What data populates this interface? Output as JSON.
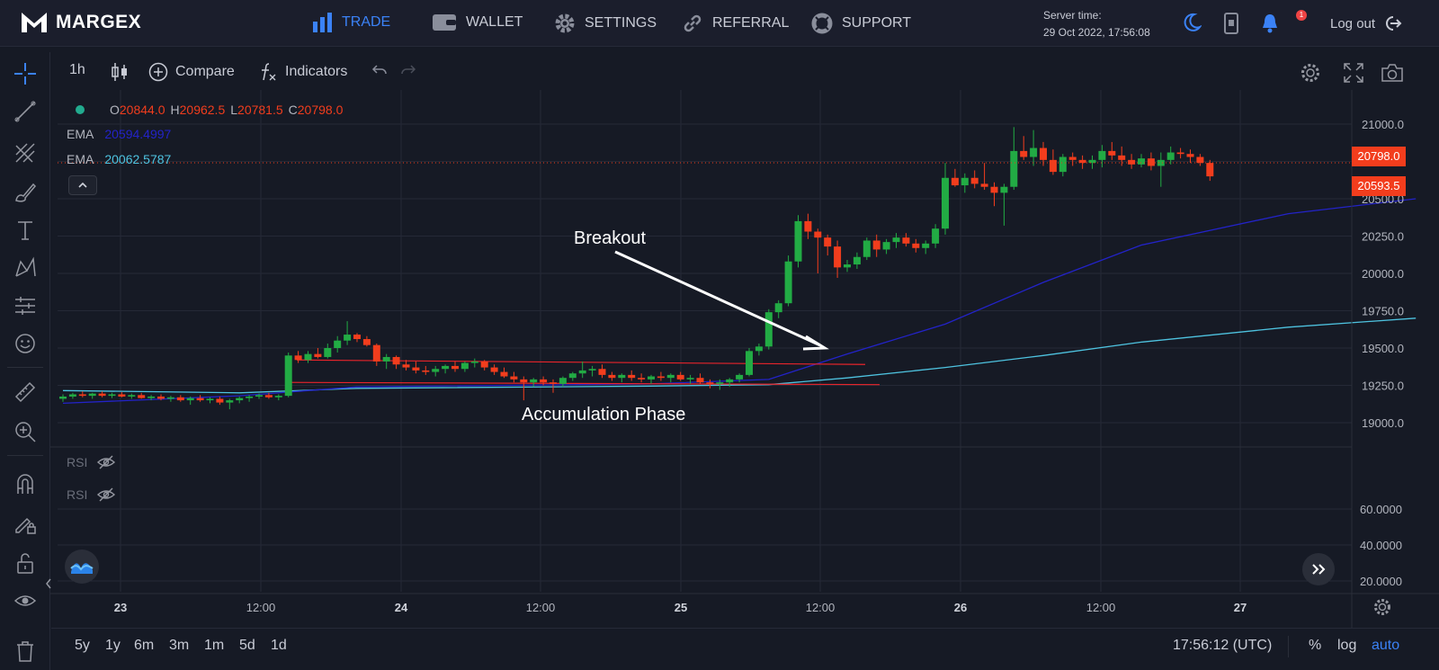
{
  "nav": {
    "brand": "MARGEX",
    "items": [
      {
        "label": "TRADE",
        "icon": "bar-chart-icon",
        "active": true
      },
      {
        "label": "WALLET",
        "icon": "wallet-icon"
      },
      {
        "label": "SETTINGS",
        "icon": "gear-icon"
      },
      {
        "label": "REFERRAL",
        "icon": "link-icon"
      },
      {
        "label": "SUPPORT",
        "icon": "lifebuoy-icon"
      }
    ],
    "server_time_label": "Server time:",
    "server_time": "29 Oct 2022, 17:56:08",
    "notification_count": "1",
    "logout": "Log out"
  },
  "toolbar": {
    "interval": "1h",
    "compare": "Compare",
    "indicators": "Indicators"
  },
  "legend": {
    "o_label": "O",
    "o": "20844.0",
    "h_label": "H",
    "h": "20962.5",
    "l_label": "L",
    "l": "20781.5",
    "c_label": "C",
    "c": "20798.0",
    "ema1_label": "EMA",
    "ema1": "20594.4997",
    "ema2_label": "EMA",
    "ema2": "20062.5787",
    "rsi1": "RSI",
    "rsi2": "RSI"
  },
  "annotations": {
    "breakout": "Breakout",
    "accumulation": "Accumulation Phase"
  },
  "price_axis": {
    "labels": [
      "21000.0",
      "20500.0",
      "20250.0",
      "20000.0",
      "19750.0",
      "19500.0",
      "19250.0",
      "19000.0"
    ],
    "last_price": "20798.0",
    "ema_price": "20593.5",
    "rsi_labels": [
      "60.0000",
      "40.0000",
      "20.0000"
    ]
  },
  "time_axis": [
    "23",
    "12:00",
    "24",
    "12:00",
    "25",
    "12:00",
    "26",
    "12:00",
    "27"
  ],
  "bottom": {
    "ranges": [
      "5y",
      "1y",
      "6m",
      "3m",
      "1m",
      "5d",
      "1d"
    ],
    "clock": "17:56:12 (UTC)",
    "percent": "%",
    "log": "log",
    "auto": "auto"
  },
  "colors": {
    "up": "#22ab44",
    "down": "#f23d1d",
    "ema_fast": "#2323c8",
    "ema_slow": "#4ec3e0",
    "accent": "#3b82f6"
  },
  "chart_data": {
    "type": "candlestick",
    "symbol_interval": "1h",
    "ylim": [
      18850,
      21150
    ],
    "x": [
      "23",
      "12:00",
      "24",
      "12:00",
      "25",
      "12:00",
      "26",
      "12:00",
      "27"
    ],
    "candles": [
      [
        19160,
        19190,
        19140,
        19175
      ],
      [
        19175,
        19200,
        19160,
        19190
      ],
      [
        19190,
        19210,
        19170,
        19180
      ],
      [
        19180,
        19200,
        19160,
        19195
      ],
      [
        19195,
        19210,
        19170,
        19180
      ],
      [
        19180,
        19200,
        19165,
        19190
      ],
      [
        19190,
        19205,
        19170,
        19175
      ],
      [
        19175,
        19195,
        19160,
        19185
      ],
      [
        19185,
        19200,
        19160,
        19165
      ],
      [
        19165,
        19185,
        19150,
        19175
      ],
      [
        19175,
        19190,
        19150,
        19160
      ],
      [
        19160,
        19180,
        19140,
        19170
      ],
      [
        19170,
        19185,
        19140,
        19150
      ],
      [
        19150,
        19175,
        19120,
        19165
      ],
      [
        19165,
        19185,
        19140,
        19150
      ],
      [
        19150,
        19170,
        19130,
        19160
      ],
      [
        19160,
        19175,
        19120,
        19135
      ],
      [
        19135,
        19160,
        19090,
        19150
      ],
      [
        19150,
        19175,
        19130,
        19165
      ],
      [
        19165,
        19185,
        19140,
        19175
      ],
      [
        19175,
        19195,
        19160,
        19185
      ],
      [
        19185,
        19200,
        19160,
        19170
      ],
      [
        19170,
        19190,
        19150,
        19180
      ],
      [
        19180,
        19470,
        19170,
        19450
      ],
      [
        19450,
        19480,
        19400,
        19420
      ],
      [
        19420,
        19480,
        19400,
        19460
      ],
      [
        19460,
        19500,
        19430,
        19440
      ],
      [
        19440,
        19530,
        19430,
        19500
      ],
      [
        19500,
        19580,
        19470,
        19550
      ],
      [
        19550,
        19680,
        19520,
        19590
      ],
      [
        19590,
        19600,
        19540,
        19560
      ],
      [
        19560,
        19580,
        19510,
        19520
      ],
      [
        19520,
        19530,
        19380,
        19410
      ],
      [
        19410,
        19460,
        19360,
        19440
      ],
      [
        19440,
        19450,
        19360,
        19390
      ],
      [
        19390,
        19420,
        19350,
        19370
      ],
      [
        19370,
        19410,
        19330,
        19350
      ],
      [
        19350,
        19380,
        19320,
        19340
      ],
      [
        19340,
        19380,
        19310,
        19360
      ],
      [
        19360,
        19390,
        19330,
        19380
      ],
      [
        19380,
        19410,
        19340,
        19360
      ],
      [
        19360,
        19410,
        19340,
        19400
      ],
      [
        19400,
        19430,
        19370,
        19410
      ],
      [
        19410,
        19420,
        19350,
        19370
      ],
      [
        19370,
        19390,
        19320,
        19340
      ],
      [
        19340,
        19370,
        19300,
        19310
      ],
      [
        19310,
        19340,
        19270,
        19290
      ],
      [
        19290,
        19310,
        19150,
        19270
      ],
      [
        19270,
        19300,
        19240,
        19290
      ],
      [
        19290,
        19310,
        19250,
        19270
      ],
      [
        19270,
        19290,
        19200,
        19260
      ],
      [
        19260,
        19310,
        19240,
        19300
      ],
      [
        19300,
        19340,
        19280,
        19330
      ],
      [
        19330,
        19410,
        19300,
        19350
      ],
      [
        19350,
        19380,
        19310,
        19360
      ],
      [
        19360,
        19390,
        19300,
        19320
      ],
      [
        19320,
        19340,
        19280,
        19300
      ],
      [
        19300,
        19330,
        19270,
        19320
      ],
      [
        19320,
        19350,
        19280,
        19300
      ],
      [
        19300,
        19330,
        19270,
        19290
      ],
      [
        19290,
        19320,
        19260,
        19310
      ],
      [
        19310,
        19340,
        19280,
        19300
      ],
      [
        19300,
        19330,
        19270,
        19320
      ],
      [
        19320,
        19340,
        19280,
        19290
      ],
      [
        19290,
        19320,
        19260,
        19300
      ],
      [
        19300,
        19330,
        19260,
        19270
      ],
      [
        19270,
        19290,
        19230,
        19260
      ],
      [
        19260,
        19290,
        19220,
        19270
      ],
      [
        19270,
        19300,
        19240,
        19290
      ],
      [
        19290,
        19330,
        19270,
        19320
      ],
      [
        19320,
        19500,
        19310,
        19480
      ],
      [
        19480,
        19530,
        19450,
        19510
      ],
      [
        19510,
        19760,
        19490,
        19740
      ],
      [
        19740,
        19820,
        19700,
        19800
      ],
      [
        19800,
        20120,
        19780,
        20080
      ],
      [
        20080,
        20390,
        20040,
        20350
      ],
      [
        20350,
        20400,
        20230,
        20280
      ],
      [
        20280,
        20300,
        20000,
        20240
      ],
      [
        20240,
        20260,
        20120,
        20180
      ],
      [
        20180,
        20220,
        19970,
        20040
      ],
      [
        20040,
        20090,
        20010,
        20060
      ],
      [
        20060,
        20140,
        20030,
        20110
      ],
      [
        20110,
        20240,
        20090,
        20220
      ],
      [
        20220,
        20260,
        20110,
        20160
      ],
      [
        20160,
        20230,
        20130,
        20210
      ],
      [
        20210,
        20270,
        20170,
        20240
      ],
      [
        20240,
        20270,
        20180,
        20200
      ],
      [
        20200,
        20230,
        20140,
        20170
      ],
      [
        20170,
        20220,
        20130,
        20200
      ],
      [
        20200,
        20330,
        20170,
        20300
      ],
      [
        20300,
        20740,
        20260,
        20640
      ],
      [
        20640,
        20700,
        20580,
        20590
      ],
      [
        20590,
        20670,
        20540,
        20640
      ],
      [
        20640,
        20690,
        20570,
        20600
      ],
      [
        20600,
        20740,
        20560,
        20580
      ],
      [
        20580,
        20610,
        20450,
        20540
      ],
      [
        20540,
        20600,
        20320,
        20580
      ],
      [
        20580,
        20980,
        20560,
        20820
      ],
      [
        20820,
        20920,
        20760,
        20780
      ],
      [
        20780,
        20960,
        20720,
        20840
      ],
      [
        20840,
        20880,
        20720,
        20760
      ],
      [
        20760,
        20830,
        20660,
        20680
      ],
      [
        20680,
        20800,
        20650,
        20780
      ],
      [
        20780,
        20810,
        20720,
        20760
      ],
      [
        20760,
        20790,
        20700,
        20740
      ],
      [
        20740,
        20790,
        20700,
        20760
      ],
      [
        20760,
        20860,
        20710,
        20820
      ],
      [
        20820,
        20880,
        20760,
        20790
      ],
      [
        20790,
        20850,
        20720,
        20760
      ],
      [
        20760,
        20800,
        20700,
        20730
      ],
      [
        20730,
        20800,
        20710,
        20770
      ],
      [
        20770,
        20810,
        20690,
        20720
      ],
      [
        20720,
        20810,
        20580,
        20760
      ],
      [
        20760,
        20850,
        20730,
        20810
      ],
      [
        20810,
        20840,
        20770,
        20800
      ],
      [
        20800,
        20830,
        20740,
        20780
      ],
      [
        20780,
        20800,
        20720,
        20740
      ],
      [
        20740,
        20760,
        20620,
        20650
      ]
    ],
    "ema_fast": [
      [
        0,
        19130
      ],
      [
        18,
        19180
      ],
      [
        30,
        19240
      ],
      [
        60,
        19260
      ],
      [
        72,
        19290
      ],
      [
        80,
        19460
      ],
      [
        90,
        19660
      ],
      [
        100,
        19940
      ],
      [
        110,
        20190
      ],
      [
        125,
        20400
      ],
      [
        138,
        20500
      ]
    ],
    "ema_slow": [
      [
        0,
        19215
      ],
      [
        18,
        19200
      ],
      [
        30,
        19230
      ],
      [
        60,
        19245
      ],
      [
        72,
        19255
      ],
      [
        80,
        19300
      ],
      [
        90,
        19370
      ],
      [
        100,
        19450
      ],
      [
        110,
        19540
      ],
      [
        125,
        19640
      ],
      [
        138,
        19700
      ]
    ],
    "support_levels": [
      19390,
      19255
    ],
    "rsi_range": [
      0,
      70
    ]
  }
}
